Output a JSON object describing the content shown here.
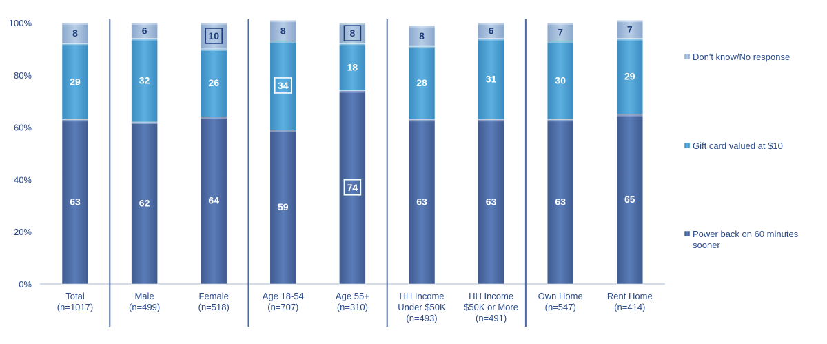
{
  "chart_data": {
    "type": "bar",
    "stacked": true,
    "percent_stacked": true,
    "categories": [
      [
        "Total",
        "(n=1017)"
      ],
      [
        "Male",
        "(n=499)"
      ],
      [
        "Female",
        "(n=518)"
      ],
      [
        "Age 18-54",
        "(n=707)"
      ],
      [
        "Age 55+",
        "(n=310)"
      ],
      [
        "HH Income",
        "Under $50K",
        "(n=493)"
      ],
      [
        "HH Income",
        "$50K or More",
        "(n=491)"
      ],
      [
        "Own Home",
        "(n=547)"
      ],
      [
        "Rent Home",
        "(n=414)"
      ]
    ],
    "series": [
      {
        "name": "Power back on 60 minutes sooner",
        "values": [
          63,
          62,
          64,
          59,
          74,
          63,
          63,
          63,
          65
        ],
        "boxed": [
          false,
          false,
          false,
          false,
          true,
          false,
          false,
          false,
          false
        ],
        "color": "#4f6ea8"
      },
      {
        "name": "Gift card valued at $10",
        "values": [
          29,
          32,
          26,
          34,
          18,
          28,
          31,
          30,
          29
        ],
        "boxed": [
          false,
          false,
          false,
          true,
          false,
          false,
          false,
          false,
          false
        ],
        "color": "#4e9fd1"
      },
      {
        "name": "Don't know/No response",
        "values": [
          8,
          6,
          10,
          8,
          8,
          8,
          6,
          7,
          7
        ],
        "boxed": [
          false,
          false,
          true,
          false,
          true,
          false,
          false,
          false,
          false
        ],
        "color": "#9db8d9"
      }
    ],
    "y_ticks": [
      "0%",
      "20%",
      "40%",
      "60%",
      "80%",
      "100%"
    ],
    "ylim": [
      0,
      100
    ],
    "group_separators_after": [
      0,
      2,
      4,
      6
    ],
    "legend": {
      "placement": "right",
      "entries": [
        [
          "Don't know/No response"
        ],
        [
          "Gift card valued at $10"
        ],
        [
          "Power back on 60 minutes",
          "sooner"
        ]
      ]
    },
    "grid": false
  }
}
